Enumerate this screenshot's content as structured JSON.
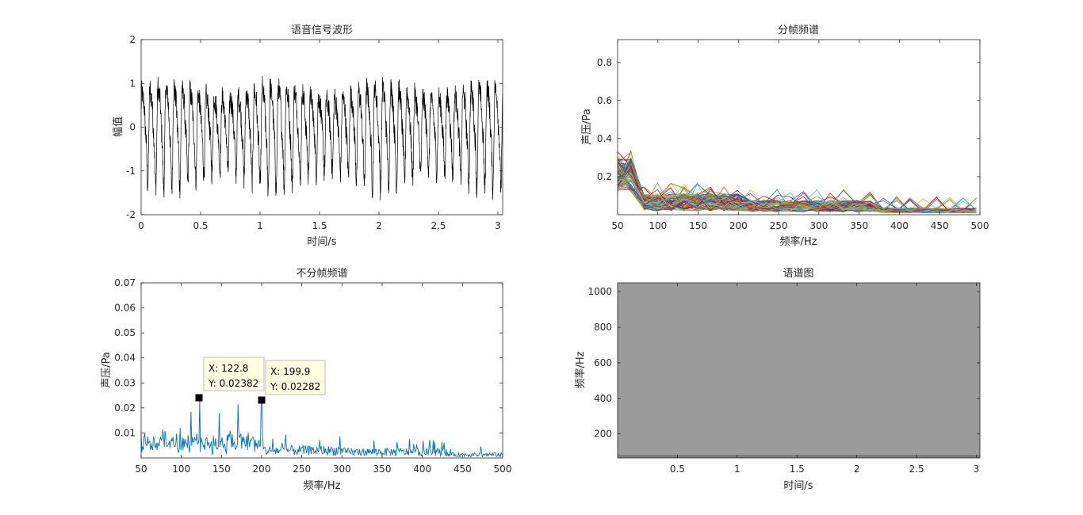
{
  "window": {
    "background": "#ffffff"
  },
  "chart_data": [
    {
      "id": "waveform",
      "type": "line",
      "title": "语音信号波形",
      "xlabel": "时间/s",
      "ylabel": "幅值",
      "xlim": [
        0,
        3.04
      ],
      "ylim": [
        -2,
        2
      ],
      "xticks": [
        "0",
        "0.5",
        "1",
        "1.5",
        "2",
        "2.5",
        "3"
      ],
      "yticks": [
        "2",
        "1",
        "0",
        "-1",
        "-2"
      ],
      "series": [
        {
          "color": "#000000",
          "description_values": {
            "fundamental_period_s": 0.0675,
            "envelope_max": 1.7,
            "envelope_min": -1.7
          }
        }
      ]
    },
    {
      "id": "frame-spectrum",
      "type": "line",
      "title": "分帧频谱",
      "xlabel": "频率/Hz",
      "ylabel": "声压/Pa",
      "xlim": [
        50,
        500
      ],
      "ylim": [
        0,
        0.92
      ],
      "xticks": [
        "50",
        "100",
        "150",
        "200",
        "250",
        "300",
        "350",
        "400",
        "450",
        "500"
      ],
      "yticks": [
        "0.8",
        "0.6",
        "0.4",
        "0.2"
      ],
      "series_count": 90,
      "palette": [
        "#0072BD",
        "#D95319",
        "#EDB120",
        "#7E2F8E",
        "#77AC30",
        "#4DBEEE",
        "#A2142F"
      ]
    },
    {
      "id": "whole-spectrum",
      "type": "line",
      "title": "不分帧频谱",
      "xlabel": "频率/Hz",
      "ylabel": "声压/Pa",
      "xlim": [
        50,
        500
      ],
      "ylim": [
        0,
        0.07
      ],
      "xticks": [
        "50",
        "100",
        "150",
        "200",
        "250",
        "300",
        "350",
        "400",
        "450",
        "500"
      ],
      "yticks": [
        "0.07",
        "0.06",
        "0.05",
        "0.04",
        "0.03",
        "0.02",
        "0.01"
      ],
      "series": [
        {
          "color": "#0072BD"
        }
      ],
      "datatips": [
        {
          "x_value": 122.8,
          "y_value": 0.02382,
          "x_text": "X: 122.8",
          "y_text": "Y: 0.02382"
        },
        {
          "x_value": 199.9,
          "y_value": 0.02282,
          "x_text": "X: 199.9",
          "y_text": "Y: 0.02282"
        }
      ]
    },
    {
      "id": "spectrogram",
      "type": "heatmap",
      "title": "语谱图",
      "xlabel": "时间/s",
      "ylabel": "频率/Hz",
      "xlim": [
        0,
        3.03
      ],
      "ylim": [
        65,
        1050
      ],
      "xticks": [
        "0.5",
        "1",
        "1.5",
        "2",
        "2.5",
        "3"
      ],
      "yticks": [
        "1000",
        "800",
        "600",
        "400",
        "200"
      ],
      "fill_color": "#9b9b9b",
      "floor_color": "#7d7d7d"
    }
  ]
}
